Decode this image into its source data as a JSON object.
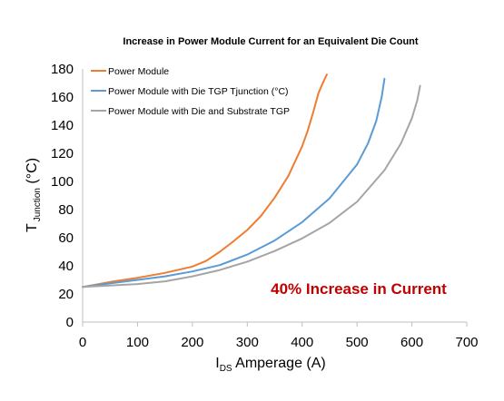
{
  "chart_data": {
    "type": "line",
    "title": "Increase in Power Module Current for an Equivalent Die Count",
    "xlabel_main": "I",
    "xlabel_sub": "DS",
    "xlabel_tail": " Amperage (A)",
    "ylabel_main": "T",
    "ylabel_sub": "Junction",
    "ylabel_tail": " (°C)",
    "xlim": [
      0,
      700
    ],
    "ylim": [
      0,
      180
    ],
    "xticks": [
      0,
      100,
      200,
      300,
      400,
      500,
      600,
      700
    ],
    "yticks": [
      0,
      20,
      40,
      60,
      80,
      100,
      120,
      140,
      160,
      180
    ],
    "grid": false,
    "legend_position": "top-left",
    "annotation": {
      "text": "40% Increase in Current",
      "color": "#C00000"
    },
    "series": [
      {
        "name": "Power Module",
        "color": "#ED7D31",
        "x": [
          0,
          50,
          100,
          150,
          200,
          225,
          250,
          275,
          300,
          325,
          350,
          375,
          400,
          410,
          420,
          430,
          440,
          445
        ],
        "y": [
          25,
          28.5,
          31.5,
          35,
          39.5,
          43.5,
          50,
          57.5,
          65.5,
          75.5,
          88.5,
          104,
          125,
          136,
          149,
          163,
          172,
          176
        ]
      },
      {
        "name": "Power Module with Die TGP Tjunction (°C)",
        "color": "#5B9BD5",
        "x": [
          0,
          50,
          100,
          150,
          200,
          250,
          300,
          350,
          400,
          450,
          500,
          520,
          535,
          545,
          550
        ],
        "y": [
          25,
          27.5,
          30,
          32.5,
          36,
          40.5,
          48,
          58,
          71,
          88,
          112,
          127,
          143,
          160,
          173
        ]
      },
      {
        "name": "Power Module with Die and Substrate TGP",
        "color": "#A5A5A5",
        "x": [
          0,
          50,
          100,
          150,
          200,
          250,
          300,
          350,
          400,
          450,
          500,
          550,
          580,
          600,
          610,
          615
        ],
        "y": [
          25,
          26,
          27,
          29,
          32.5,
          37,
          43,
          50.5,
          59.5,
          70.5,
          85.5,
          108,
          127,
          145,
          158,
          168
        ]
      }
    ]
  }
}
